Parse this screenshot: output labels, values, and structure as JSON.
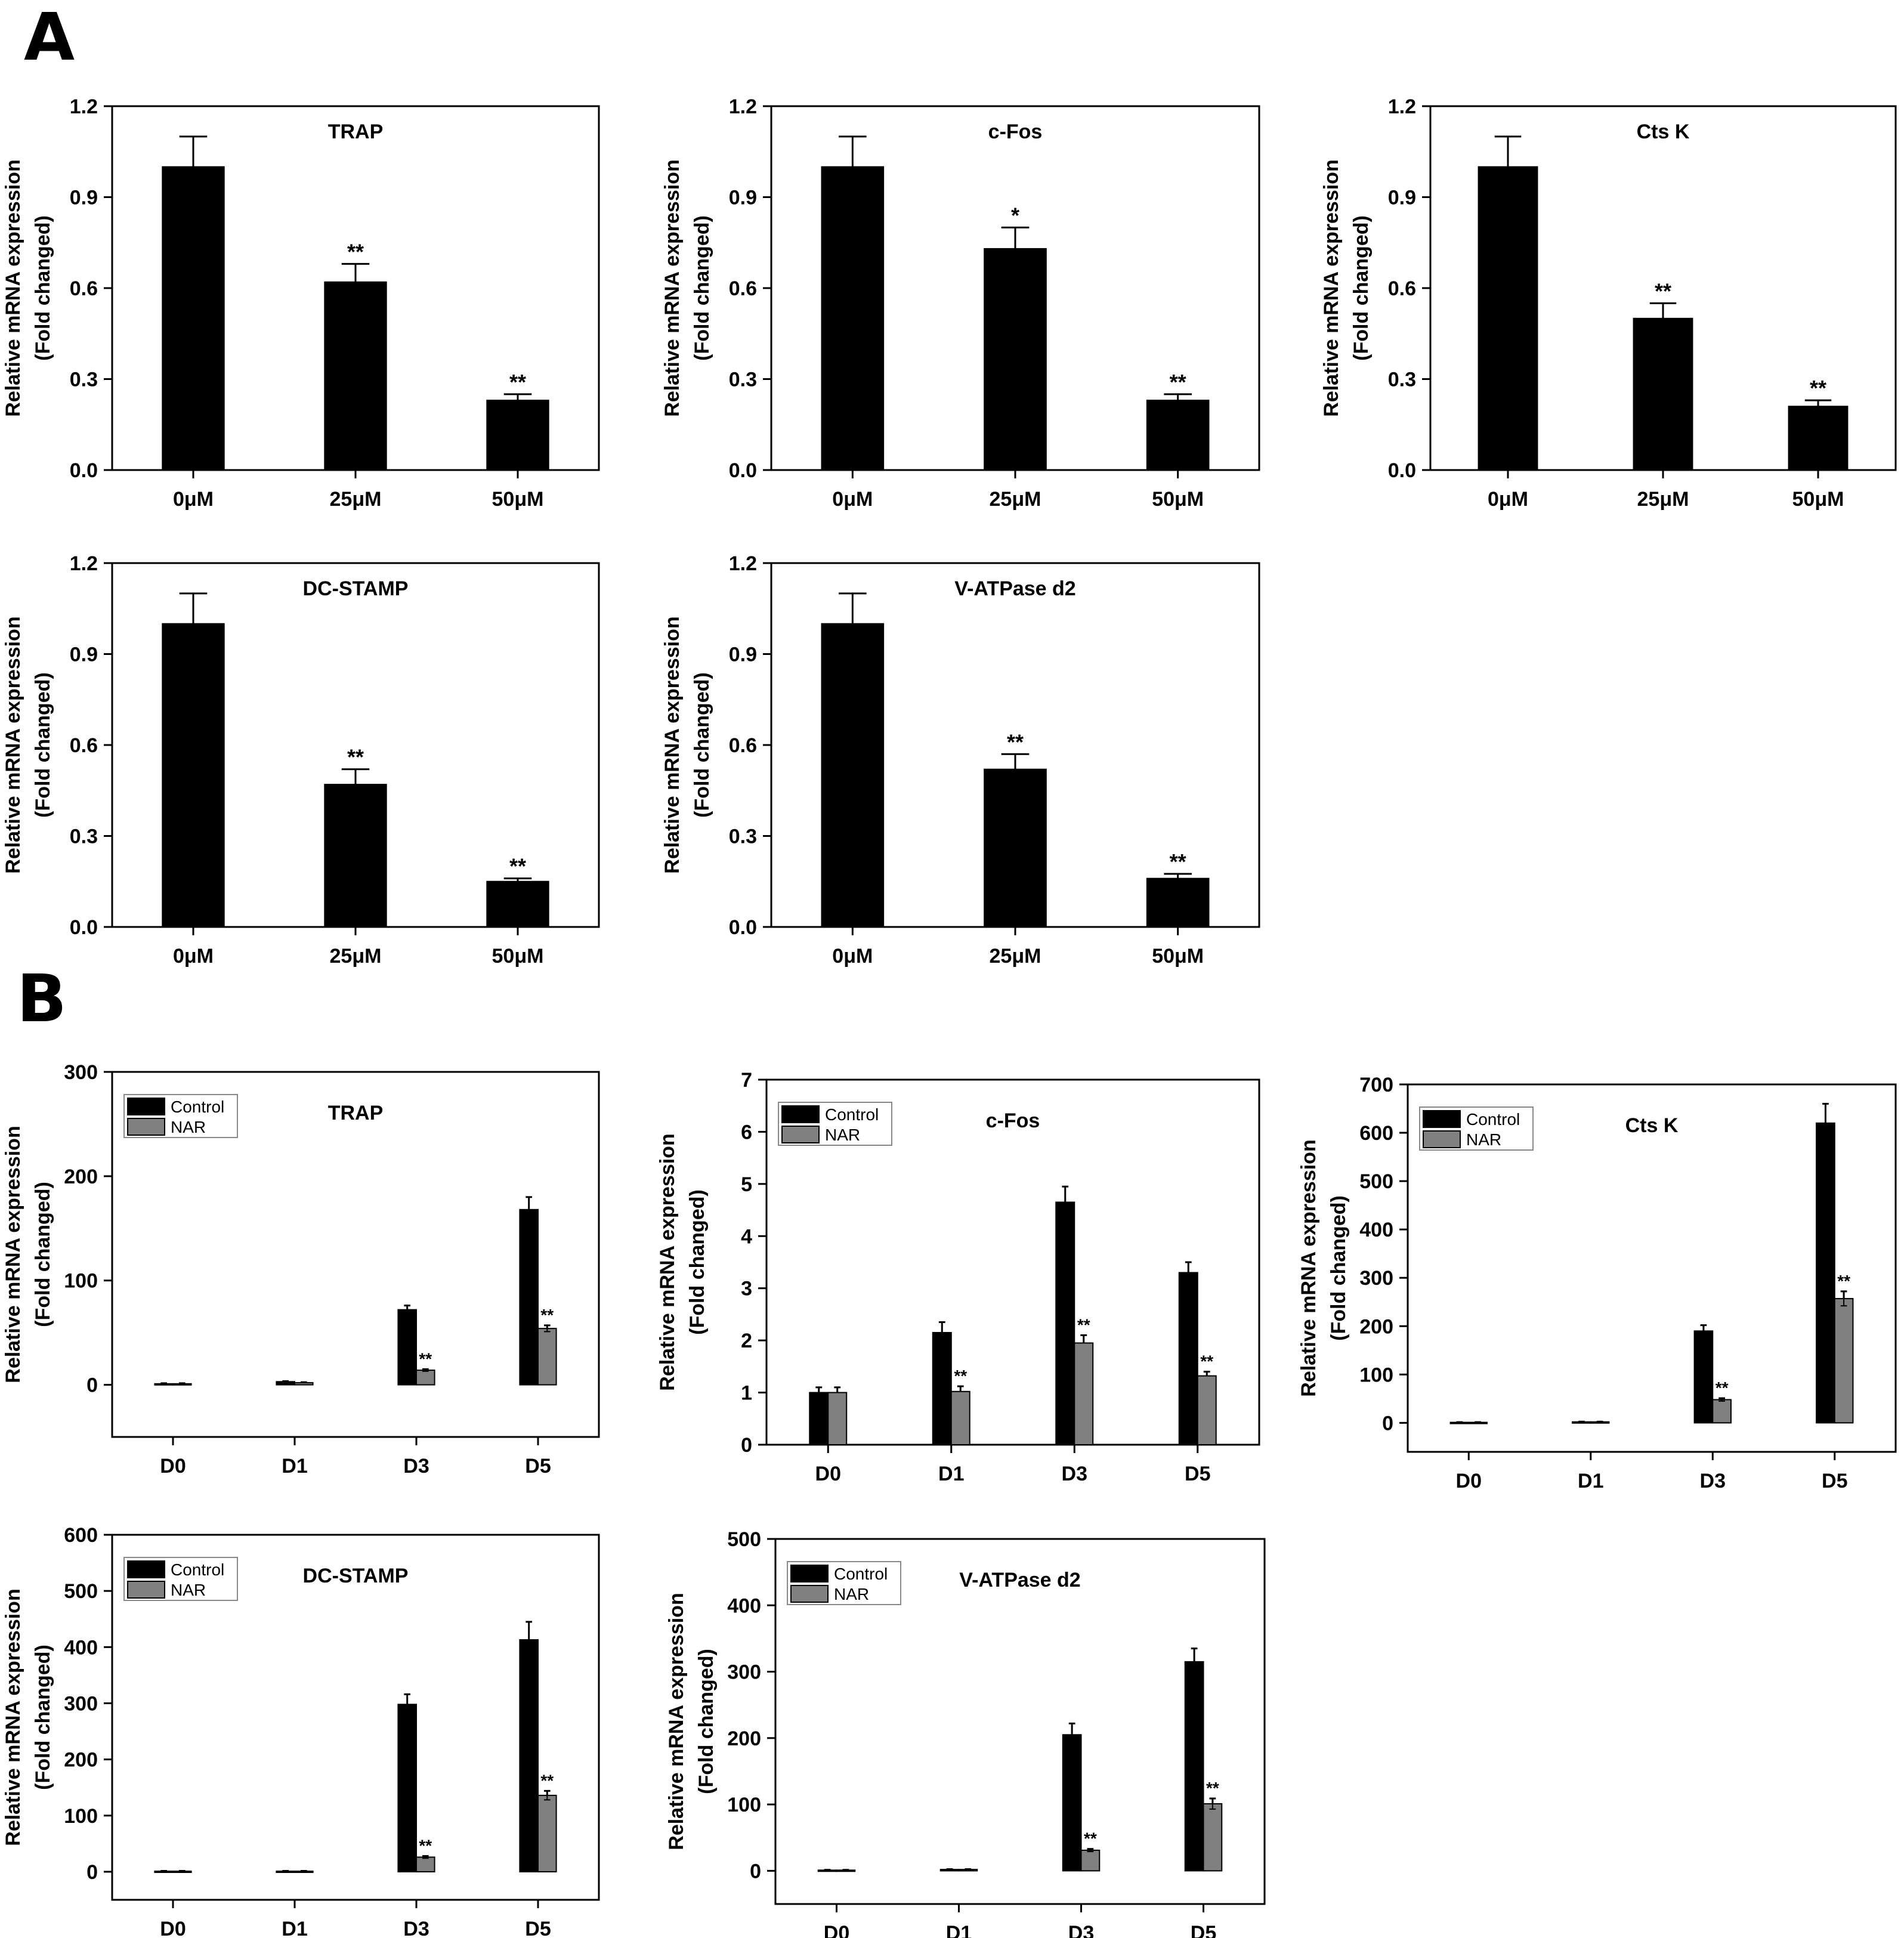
{
  "panel_labels": [
    "A",
    "B"
  ],
  "chart_data": [
    {
      "type": "bar",
      "panel": "A",
      "title": "TRAP",
      "ylabel": "Relative mRNA expression\n(Fold changed)",
      "xlabel": "",
      "ylim": [
        0,
        1.2
      ],
      "yticks": [
        "0.0",
        "0.3",
        "0.6",
        "0.9",
        "1.2"
      ],
      "categories": [
        "0μM",
        "25μM",
        "50μM"
      ],
      "series": [
        {
          "name": "",
          "color": "#000000",
          "values": [
            1.0,
            0.62,
            0.23
          ],
          "errors": [
            0.1,
            0.06,
            0.02
          ],
          "annotations": [
            "",
            "**",
            "**"
          ]
        }
      ]
    },
    {
      "type": "bar",
      "panel": "A",
      "title": "c-Fos",
      "ylabel": "Relative mRNA expression\n(Fold changed)",
      "xlabel": "",
      "ylim": [
        0,
        1.2
      ],
      "yticks": [
        "0.0",
        "0.3",
        "0.6",
        "0.9",
        "1.2"
      ],
      "categories": [
        "0μM",
        "25μM",
        "50μM"
      ],
      "series": [
        {
          "name": "",
          "color": "#000000",
          "values": [
            1.0,
            0.73,
            0.23
          ],
          "errors": [
            0.1,
            0.07,
            0.02
          ],
          "annotations": [
            "",
            "*",
            "**"
          ]
        }
      ]
    },
    {
      "type": "bar",
      "panel": "A",
      "title": "Cts K",
      "ylabel": "Relative mRNA expression\n(Fold changed)",
      "xlabel": "",
      "ylim": [
        0,
        1.2
      ],
      "yticks": [
        "0.0",
        "0.3",
        "0.6",
        "0.9",
        "1.2"
      ],
      "categories": [
        "0μM",
        "25μM",
        "50μM"
      ],
      "series": [
        {
          "name": "",
          "color": "#000000",
          "values": [
            1.0,
            0.5,
            0.21
          ],
          "errors": [
            0.1,
            0.05,
            0.02
          ],
          "annotations": [
            "",
            "**",
            "**"
          ]
        }
      ]
    },
    {
      "type": "bar",
      "panel": "A",
      "title": "DC-STAMP",
      "ylabel": "Relative mRNA expression\n(Fold changed)",
      "xlabel": "",
      "ylim": [
        0,
        1.2
      ],
      "yticks": [
        "0.0",
        "0.3",
        "0.6",
        "0.9",
        "1.2"
      ],
      "categories": [
        "0μM",
        "25μM",
        "50μM"
      ],
      "series": [
        {
          "name": "",
          "color": "#000000",
          "values": [
            1.0,
            0.47,
            0.15
          ],
          "errors": [
            0.1,
            0.05,
            0.01
          ],
          "annotations": [
            "",
            "**",
            "**"
          ]
        }
      ]
    },
    {
      "type": "bar",
      "panel": "A",
      "title": "V-ATPase d2",
      "ylabel": "Relative mRNA expression\n(Fold changed)",
      "xlabel": "",
      "ylim": [
        0,
        1.2
      ],
      "yticks": [
        "0.0",
        "0.3",
        "0.6",
        "0.9",
        "1.2"
      ],
      "categories": [
        "0μM",
        "25μM",
        "50μM"
      ],
      "series": [
        {
          "name": "",
          "color": "#000000",
          "values": [
            1.0,
            0.52,
            0.16
          ],
          "errors": [
            0.1,
            0.05,
            0.015
          ],
          "annotations": [
            "",
            "**",
            "**"
          ]
        }
      ]
    },
    {
      "type": "bar",
      "panel": "B",
      "title": "TRAP",
      "ylabel": "Relative mRNA expression\n(Fold changed)",
      "xlabel": "",
      "ylim": [
        -50,
        300
      ],
      "yticks": [
        "0",
        "100",
        "200",
        "300"
      ],
      "categories": [
        "D0",
        "D1",
        "D3",
        "D5"
      ],
      "legend": "top-left",
      "series": [
        {
          "name": "Control",
          "color": "#000000",
          "values": [
            1,
            3,
            72,
            168
          ],
          "errors": [
            0.5,
            0.5,
            4,
            12
          ],
          "annotations": [
            "",
            "",
            "",
            ""
          ]
        },
        {
          "name": "NAR",
          "color": "#808080",
          "values": [
            1,
            2,
            14,
            54
          ],
          "errors": [
            0.5,
            0.5,
            1,
            3
          ],
          "annotations": [
            "",
            "",
            "**",
            "**"
          ]
        }
      ]
    },
    {
      "type": "bar",
      "panel": "B",
      "title": "c-Fos",
      "ylabel": "Relative mRNA expression\n(Fold changed)",
      "xlabel": "",
      "ylim": [
        0,
        7
      ],
      "yticks": [
        "0",
        "1",
        "2",
        "3",
        "4",
        "5",
        "6",
        "7"
      ],
      "categories": [
        "D0",
        "D1",
        "D3",
        "D5"
      ],
      "legend": "top-left",
      "series": [
        {
          "name": "Control",
          "color": "#000000",
          "values": [
            1.0,
            2.15,
            4.65,
            3.3
          ],
          "errors": [
            0.1,
            0.2,
            0.3,
            0.2
          ],
          "annotations": [
            "",
            "",
            "",
            ""
          ]
        },
        {
          "name": "NAR",
          "color": "#808080",
          "values": [
            1.0,
            1.02,
            1.95,
            1.32
          ],
          "errors": [
            0.1,
            0.1,
            0.15,
            0.08
          ],
          "annotations": [
            "",
            "**",
            "**",
            "**"
          ]
        }
      ]
    },
    {
      "type": "bar",
      "panel": "B",
      "title": "Cts K",
      "ylabel": "Relative mRNA expression\n(Fold changed)",
      "xlabel": "",
      "ylim": [
        -60,
        700
      ],
      "yticks": [
        "0",
        "100",
        "200",
        "300",
        "400",
        "500",
        "600",
        "700"
      ],
      "categories": [
        "D0",
        "D1",
        "D3",
        "D5"
      ],
      "legend": "top-left",
      "series": [
        {
          "name": "Control",
          "color": "#000000",
          "values": [
            1,
            2,
            190,
            620
          ],
          "errors": [
            0.5,
            0.5,
            12,
            40
          ],
          "annotations": [
            "",
            "",
            "",
            ""
          ]
        },
        {
          "name": "NAR",
          "color": "#808080",
          "values": [
            1,
            2,
            48,
            257
          ],
          "errors": [
            0.5,
            0.5,
            3,
            15
          ],
          "annotations": [
            "",
            "",
            "**",
            "**"
          ]
        }
      ]
    },
    {
      "type": "bar",
      "panel": "B",
      "title": "DC-STAMP",
      "ylabel": "Relative mRNA expression\n(Fold changed)",
      "xlabel": "",
      "ylim": [
        -50,
        600
      ],
      "yticks": [
        "0",
        "100",
        "200",
        "300",
        "400",
        "500",
        "600"
      ],
      "categories": [
        "D0",
        "D1",
        "D3",
        "D5"
      ],
      "legend": "top-left",
      "series": [
        {
          "name": "Control",
          "color": "#000000",
          "values": [
            1,
            1,
            298,
            413
          ],
          "errors": [
            0.5,
            0.5,
            18,
            32
          ],
          "annotations": [
            "",
            "",
            "",
            ""
          ]
        },
        {
          "name": "NAR",
          "color": "#808080",
          "values": [
            1,
            1,
            26,
            136
          ],
          "errors": [
            0.5,
            0.5,
            2,
            8
          ],
          "annotations": [
            "",
            "",
            "**",
            "**"
          ]
        }
      ]
    },
    {
      "type": "bar",
      "panel": "B",
      "title": "V-ATPase d2",
      "ylabel": "Relative mRNA expression\n(Fold changed)",
      "xlabel": "",
      "ylim": [
        -50,
        500
      ],
      "yticks": [
        "0",
        "100",
        "200",
        "300",
        "400",
        "500"
      ],
      "categories": [
        "D0",
        "D1",
        "D3",
        "D5"
      ],
      "legend": "top-left",
      "series": [
        {
          "name": "Control",
          "color": "#000000",
          "values": [
            1,
            2,
            205,
            315
          ],
          "errors": [
            0.5,
            0.5,
            17,
            20
          ],
          "annotations": [
            "",
            "",
            "",
            ""
          ]
        },
        {
          "name": "NAR",
          "color": "#808080",
          "values": [
            1,
            2,
            31,
            101
          ],
          "errors": [
            0.5,
            0.5,
            2,
            8
          ],
          "annotations": [
            "",
            "",
            "**",
            "**"
          ]
        }
      ]
    }
  ]
}
